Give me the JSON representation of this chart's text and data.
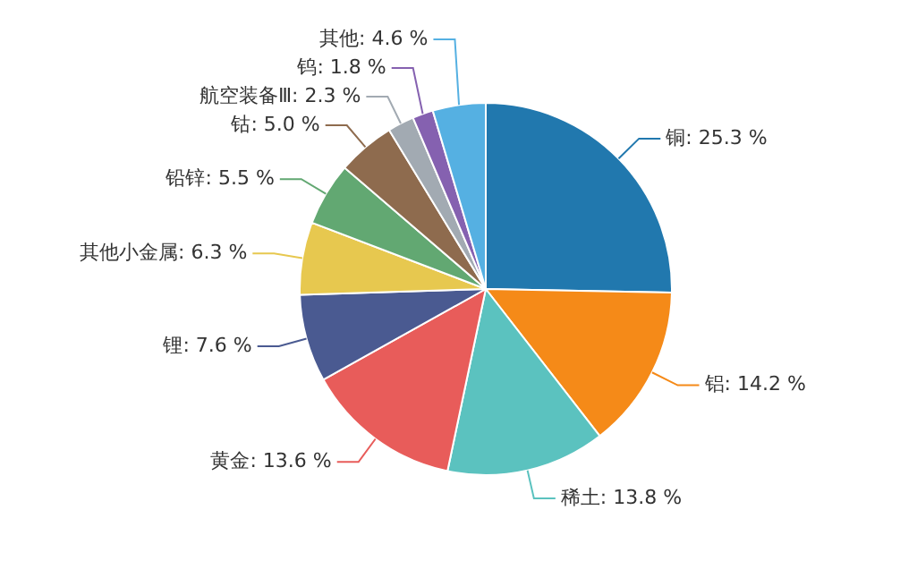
{
  "chart_data": {
    "type": "pie",
    "categories": [
      "铜",
      "铝",
      "稀土",
      "黄金",
      "锂",
      "其他小金属",
      "铅锌",
      "钴",
      "航空装备Ⅲ",
      "钨",
      "其他"
    ],
    "values": [
      25.3,
      14.2,
      13.8,
      13.6,
      7.6,
      6.3,
      5.5,
      5.0,
      2.3,
      1.8,
      4.6
    ],
    "value_labels": [
      "25.3 %",
      "14.2 %",
      "13.8 %",
      "13.6 %",
      "7.6 %",
      "6.3 %",
      "5.5 %",
      "5.0 %",
      "2.3 %",
      "1.8 %",
      "4.6 %"
    ],
    "colors": [
      "#2178ae",
      "#f58a18",
      "#5bc2bf",
      "#e85c5a",
      "#4a5a91",
      "#e7c84f",
      "#62a872",
      "#8e6b4e",
      "#a2aab2",
      "#8561b0",
      "#55b0e2"
    ],
    "legend": false
  }
}
